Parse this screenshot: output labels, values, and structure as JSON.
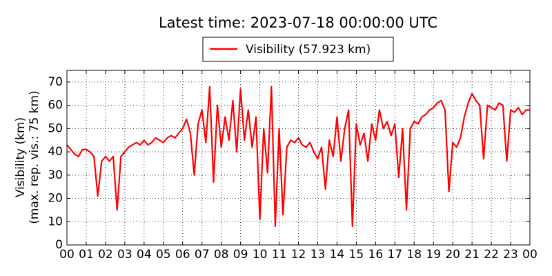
{
  "chart_data": {
    "type": "line",
    "title": "Latest time: 2023-07-18 00:00:00 UTC",
    "ylabel": [
      "Visibility (km)",
      "(max. rep. vis.: 75 km)"
    ],
    "x": [
      0,
      0.2,
      0.4,
      0.6,
      0.8,
      1,
      1.2,
      1.4,
      1.6,
      1.8,
      2,
      2.2,
      2.4,
      2.6,
      2.8,
      3,
      3.2,
      3.4,
      3.6,
      3.8,
      4,
      4.2,
      4.4,
      4.6,
      4.8,
      5,
      5.2,
      5.4,
      5.6,
      5.8,
      6,
      6.2,
      6.4,
      6.6,
      6.8,
      7,
      7.2,
      7.4,
      7.6,
      7.8,
      8,
      8.2,
      8.4,
      8.6,
      8.8,
      9,
      9.2,
      9.4,
      9.6,
      9.8,
      10,
      10.2,
      10.4,
      10.6,
      10.8,
      11,
      11.2,
      11.4,
      11.6,
      11.8,
      12,
      12.2,
      12.4,
      12.6,
      12.8,
      13,
      13.2,
      13.4,
      13.6,
      13.8,
      14,
      14.2,
      14.4,
      14.6,
      14.8,
      15,
      15.2,
      15.4,
      15.6,
      15.8,
      16,
      16.2,
      16.4,
      16.6,
      16.8,
      17,
      17.2,
      17.4,
      17.6,
      17.8,
      18,
      18.2,
      18.4,
      18.6,
      18.8,
      19,
      19.2,
      19.4,
      19.6,
      19.8,
      20,
      20.2,
      20.4,
      20.6,
      20.8,
      21,
      21.2,
      21.4,
      21.6,
      21.8,
      22,
      22.2,
      22.4,
      22.6,
      22.8,
      23,
      23.2,
      23.4,
      23.6,
      23.8,
      24
    ],
    "series": [
      {
        "name": "Visibility (57.923 km)",
        "color": "#ff0000",
        "values": [
          43,
          41,
          39,
          38,
          41,
          41,
          40,
          38,
          21,
          36,
          38,
          36,
          38,
          15,
          38,
          40,
          42,
          43,
          44,
          43,
          45,
          43,
          44,
          46,
          45,
          44,
          46,
          47,
          46,
          48,
          50,
          54,
          48,
          30,
          52,
          58,
          44,
          68,
          27,
          60,
          42,
          55,
          45,
          62,
          40,
          67,
          45,
          58,
          42,
          55,
          11,
          50,
          31,
          68,
          8,
          50,
          13,
          42,
          45,
          44,
          46,
          43,
          42,
          44,
          40,
          37,
          42,
          24,
          45,
          38,
          55,
          36,
          50,
          58,
          8,
          52,
          43,
          48,
          36,
          52,
          45,
          58,
          50,
          53,
          47,
          52,
          29,
          50,
          15,
          50,
          53,
          52,
          55,
          56,
          58,
          59,
          61,
          62,
          58,
          23,
          44,
          42,
          46,
          55,
          61,
          65,
          62,
          60,
          37,
          60,
          59,
          58,
          61,
          60,
          36,
          58,
          57,
          59,
          56,
          58,
          58
        ]
      }
    ],
    "xlim": [
      0,
      24
    ],
    "xticks": [
      {
        "value": 0,
        "label": "00"
      },
      {
        "value": 1,
        "label": "01"
      },
      {
        "value": 2,
        "label": "02"
      },
      {
        "value": 3,
        "label": "03"
      },
      {
        "value": 4,
        "label": "04"
      },
      {
        "value": 5,
        "label": "05"
      },
      {
        "value": 6,
        "label": "06"
      },
      {
        "value": 7,
        "label": "07"
      },
      {
        "value": 8,
        "label": "08"
      },
      {
        "value": 9,
        "label": "09"
      },
      {
        "value": 10,
        "label": "10"
      },
      {
        "value": 11,
        "label": "11"
      },
      {
        "value": 12,
        "label": "12"
      },
      {
        "value": 13,
        "label": "13"
      },
      {
        "value": 14,
        "label": "14"
      },
      {
        "value": 15,
        "label": "15"
      },
      {
        "value": 16,
        "label": "16"
      },
      {
        "value": 17,
        "label": "17"
      },
      {
        "value": 18,
        "label": "18"
      },
      {
        "value": 19,
        "label": "19"
      },
      {
        "value": 20,
        "label": "20"
      },
      {
        "value": 21,
        "label": "21"
      },
      {
        "value": 22,
        "label": "22"
      },
      {
        "value": 23,
        "label": "23"
      },
      {
        "value": 24,
        "label": "00"
      }
    ],
    "ylim": [
      0,
      75
    ],
    "yticks": [
      0,
      10,
      20,
      30,
      40,
      50,
      60,
      70
    ],
    "grid": true,
    "legend": "top"
  }
}
